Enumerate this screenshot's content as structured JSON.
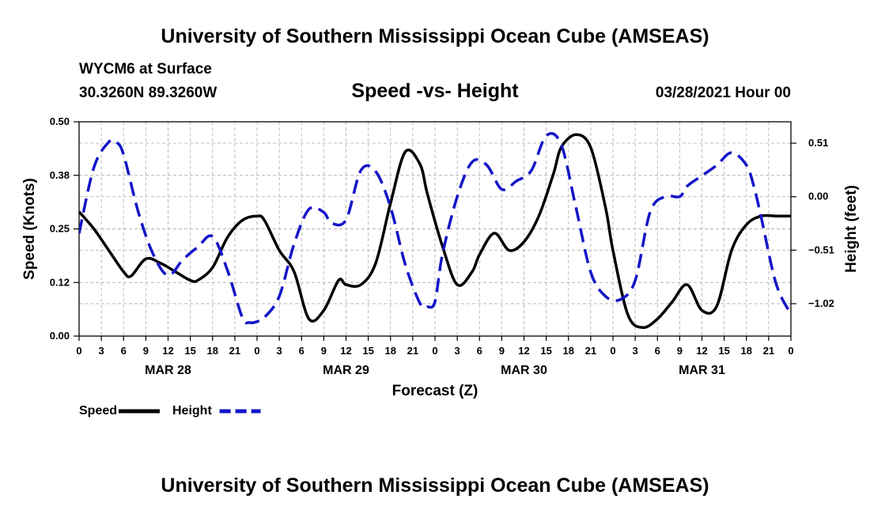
{
  "page_title": "University of Southern Mississippi Ocean Cube (AMSEAS)",
  "footer_title": "University of Southern Mississippi Ocean Cube (AMSEAS)",
  "station": "WYCM6 at Surface",
  "coords": "30.3260N  89.3260W",
  "datetime": "03/28/2021 Hour 00",
  "chart_data": {
    "type": "line",
    "title": "Speed -vs- Height",
    "xlabel": "Forecast (Z)",
    "ylabel_left": "Speed (Knots)",
    "ylabel_right": "Height (feet)",
    "x_hour_labels": [
      "0",
      "3",
      "6",
      "9",
      "12",
      "15",
      "18",
      "21",
      "0",
      "3",
      "6",
      "9",
      "12",
      "15",
      "18",
      "21",
      "0",
      "3",
      "6",
      "9",
      "12",
      "15",
      "18",
      "21",
      "0",
      "3",
      "6",
      "9",
      "12",
      "15",
      "18",
      "21",
      "0"
    ],
    "x_date_labels": [
      {
        "label": "MAR 28",
        "hour": 12
      },
      {
        "label": "MAR 29",
        "hour": 36
      },
      {
        "label": "MAR 30",
        "hour": 60
      },
      {
        "label": "MAR 31",
        "hour": 84
      }
    ],
    "xlim": [
      0,
      96
    ],
    "ylim_left": [
      0,
      0.5
    ],
    "yticks_left": [
      "0.00",
      "0.12",
      "0.25",
      "0.38",
      "0.50"
    ],
    "ylim_right": [
      -1.329,
      0.714
    ],
    "yticks_right": [
      {
        "label": "0.51",
        "value": 0.51
      },
      {
        "label": "0.00",
        "value": 0.0
      },
      {
        "label": "−0.51",
        "value": -0.51
      },
      {
        "label": "−1.02",
        "value": -1.02
      }
    ],
    "grid": true,
    "series": [
      {
        "name": "Speed",
        "axis": "left",
        "color": "#000000",
        "style": "solid",
        "x": [
          0,
          2,
          4,
          6,
          7,
          9,
          11,
          13,
          15,
          16,
          18,
          20,
          22,
          24,
          25,
          27,
          29,
          31,
          33,
          35,
          36,
          38,
          40,
          42,
          44,
          46,
          47,
          49,
          51,
          53,
          54,
          56,
          58,
          60,
          62,
          64,
          65,
          67,
          69,
          71,
          72,
          74,
          76,
          78,
          80,
          82,
          84,
          86,
          88,
          90,
          92,
          94,
          95,
          96
        ],
        "y": [
          0.29,
          0.25,
          0.2,
          0.15,
          0.14,
          0.18,
          0.17,
          0.15,
          0.13,
          0.13,
          0.16,
          0.23,
          0.27,
          0.28,
          0.27,
          0.2,
          0.15,
          0.04,
          0.06,
          0.13,
          0.12,
          0.12,
          0.17,
          0.31,
          0.43,
          0.4,
          0.33,
          0.21,
          0.12,
          0.15,
          0.19,
          0.24,
          0.2,
          0.22,
          0.28,
          0.38,
          0.44,
          0.47,
          0.44,
          0.3,
          0.2,
          0.05,
          0.02,
          0.04,
          0.08,
          0.12,
          0.06,
          0.07,
          0.2,
          0.26,
          0.28,
          0.28,
          0.28,
          0.28
        ]
      },
      {
        "name": "Height",
        "axis": "right",
        "color": "#1515c8",
        "style": "dashed",
        "x": [
          0,
          2,
          4,
          5,
          6,
          8,
          10,
          12,
          14,
          16,
          18,
          20,
          22,
          23,
          24,
          25,
          27,
          29,
          31,
          33,
          34,
          36,
          38,
          40,
          42,
          44,
          46,
          47,
          48,
          49,
          51,
          53,
          55,
          57,
          59,
          61,
          63,
          65,
          67,
          69,
          71,
          73,
          75,
          77,
          79,
          81,
          82,
          84,
          86,
          88,
          90,
          91,
          92,
          94,
          96
        ],
        "y": [
          -0.35,
          0.28,
          0.52,
          0.52,
          0.4,
          -0.15,
          -0.55,
          -0.75,
          -0.6,
          -0.48,
          -0.38,
          -0.7,
          -1.15,
          -1.2,
          -1.19,
          -1.15,
          -0.95,
          -0.45,
          -0.12,
          -0.15,
          -0.25,
          -0.22,
          0.25,
          0.24,
          -0.1,
          -0.65,
          -1.02,
          -1.05,
          -1.0,
          -0.55,
          0.0,
          0.33,
          0.3,
          0.07,
          0.15,
          0.25,
          0.58,
          0.5,
          -0.1,
          -0.72,
          -0.95,
          -0.98,
          -0.8,
          -0.15,
          0.0,
          0.0,
          0.1,
          0.2,
          0.3,
          0.42,
          0.3,
          0.1,
          -0.2,
          -0.83,
          -1.12
        ]
      }
    ],
    "legend": [
      {
        "label": "Speed",
        "color": "#000000",
        "style": "solid"
      },
      {
        "label": "Height",
        "color": "#1515c8",
        "style": "dashed"
      }
    ]
  }
}
